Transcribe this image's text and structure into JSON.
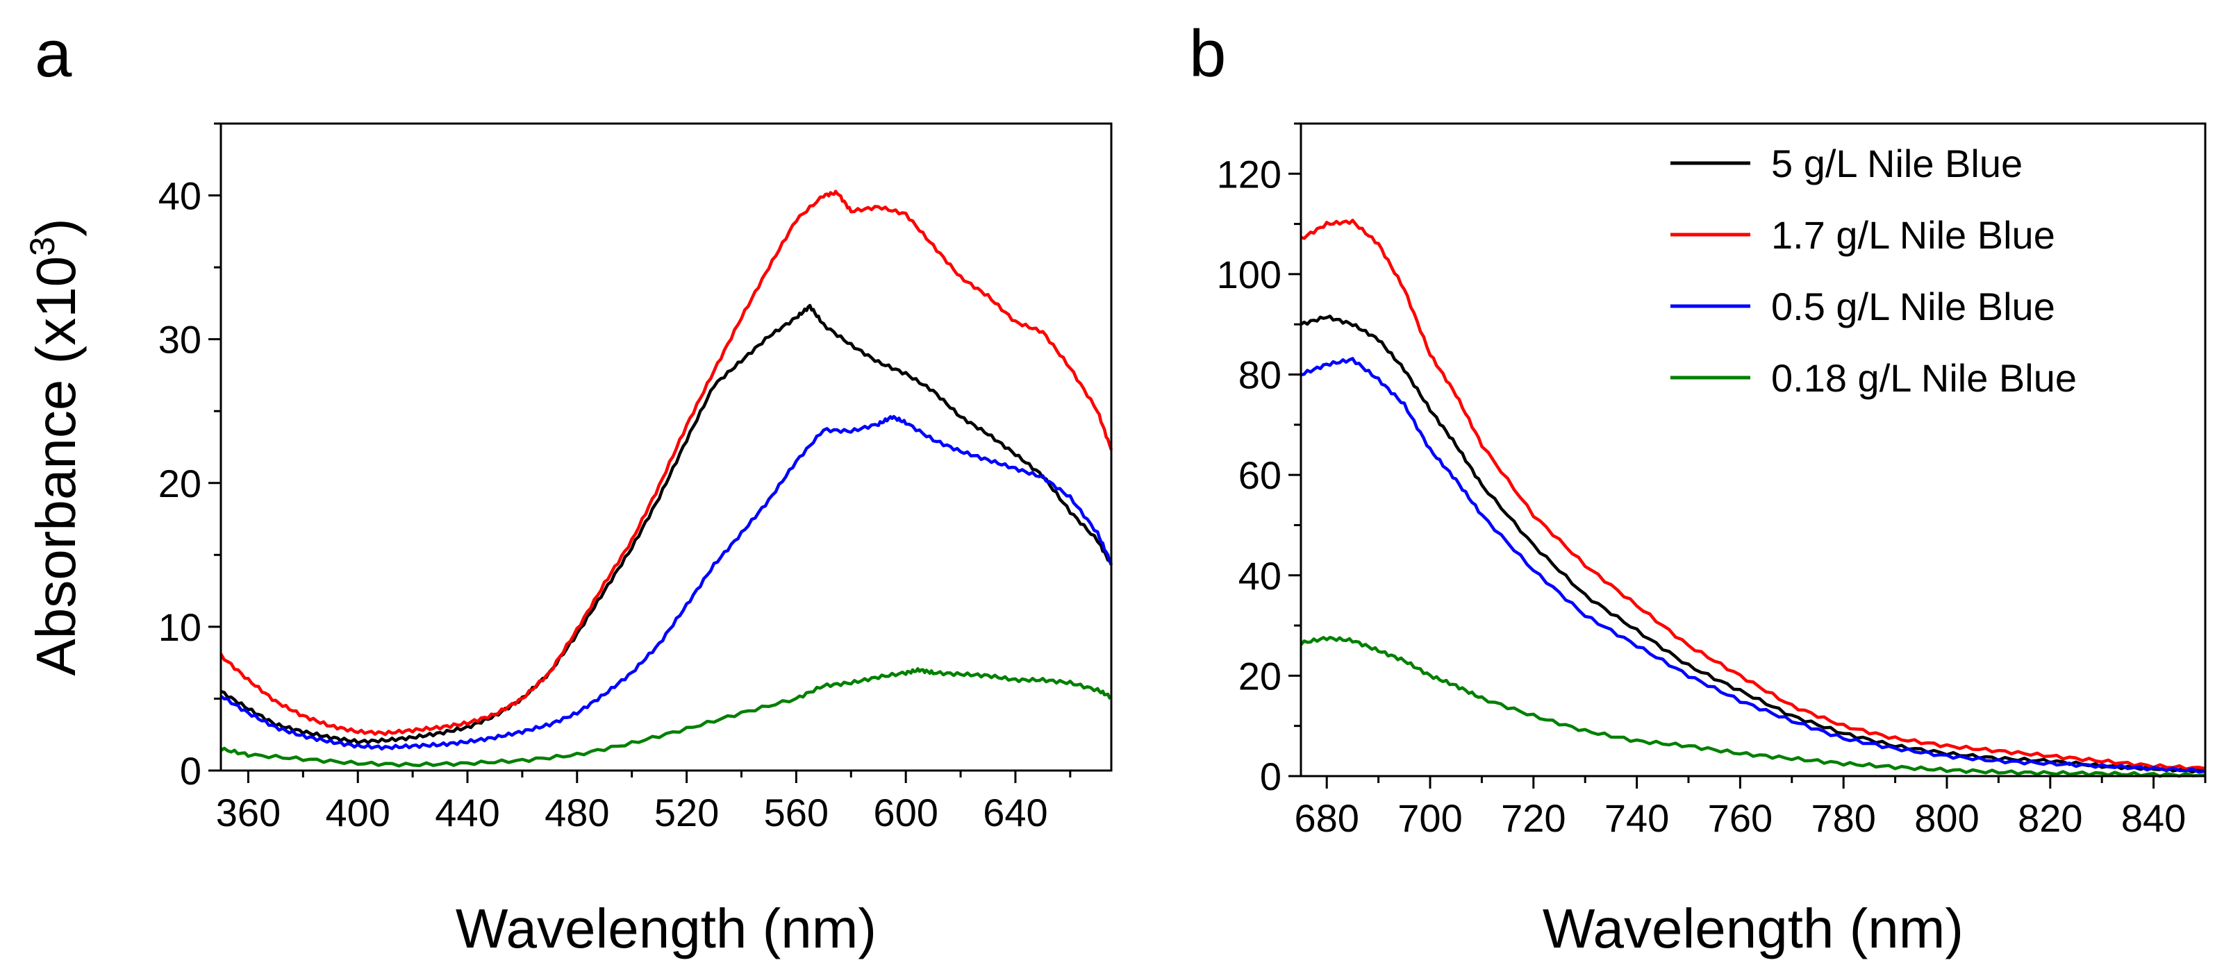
{
  "chart_data": [
    {
      "panel": "a",
      "type": "line",
      "xlabel": "Wavelength (nm)",
      "ylabel": "Absorbance (x10",
      "ylabel_sup": "3",
      "ylabel_close": ")",
      "xlim": [
        350,
        675
      ],
      "ylim": [
        0,
        45
      ],
      "xticks": [
        360,
        400,
        440,
        480,
        520,
        560,
        600,
        640
      ],
      "yticks": [
        0,
        10,
        20,
        30,
        40
      ],
      "series": [
        {
          "name": "5 g/L Nile Blue",
          "color": "#000000",
          "x": [
            350,
            360,
            370,
            380,
            390,
            400,
            410,
            420,
            430,
            440,
            450,
            460,
            470,
            480,
            490,
            500,
            510,
            520,
            530,
            540,
            550,
            560,
            565,
            570,
            580,
            590,
            600,
            610,
            620,
            630,
            640,
            650,
            660,
            670,
            675
          ],
          "y": [
            5.5,
            4.3,
            3.2,
            2.7,
            2.3,
            2.0,
            2.1,
            2.3,
            2.6,
            3.0,
            3.8,
            5.0,
            6.8,
            9.5,
            12.5,
            15.5,
            19.0,
            23.0,
            26.8,
            28.5,
            30.2,
            31.5,
            32.3,
            31.0,
            29.6,
            28.4,
            27.6,
            26.4,
            24.6,
            23.4,
            22.0,
            20.5,
            18.0,
            16.0,
            14.3
          ]
        },
        {
          "name": "1.7 g/L Nile Blue",
          "color": "#ff0000",
          "x": [
            350,
            360,
            370,
            380,
            390,
            400,
            410,
            420,
            430,
            440,
            450,
            460,
            470,
            480,
            490,
            500,
            510,
            520,
            530,
            540,
            550,
            560,
            570,
            575,
            580,
            590,
            600,
            610,
            620,
            630,
            640,
            650,
            660,
            670,
            675
          ],
          "y": [
            8.0,
            6.3,
            4.8,
            3.8,
            3.1,
            2.7,
            2.6,
            2.8,
            3.0,
            3.3,
            3.9,
            5.0,
            6.8,
            9.8,
            13.0,
            16.0,
            19.8,
            24.0,
            27.8,
            31.5,
            35.0,
            38.3,
            40.0,
            40.2,
            38.9,
            39.2,
            38.7,
            36.5,
            34.3,
            33.0,
            31.2,
            30.5,
            28.0,
            25.0,
            22.3
          ]
        },
        {
          "name": "0.5 g/L Nile Blue",
          "color": "#0000ff",
          "x": [
            350,
            360,
            370,
            380,
            390,
            400,
            410,
            420,
            430,
            440,
            450,
            460,
            470,
            480,
            490,
            500,
            510,
            520,
            530,
            540,
            550,
            560,
            570,
            580,
            590,
            595,
            600,
            610,
            620,
            630,
            640,
            650,
            660,
            670,
            675
          ],
          "y": [
            5.2,
            4.0,
            3.0,
            2.4,
            2.0,
            1.7,
            1.6,
            1.7,
            1.8,
            2.0,
            2.3,
            2.7,
            3.2,
            4.0,
            5.3,
            6.8,
            8.8,
            11.5,
            14.3,
            16.5,
            18.8,
            21.5,
            23.7,
            23.6,
            24.1,
            24.6,
            24.2,
            23.0,
            22.2,
            21.6,
            21.0,
            20.4,
            19.0,
            16.5,
            14.4
          ]
        },
        {
          "name": "0.18 g/L Nile Blue",
          "color": "#008000",
          "x": [
            350,
            360,
            380,
            400,
            420,
            440,
            460,
            480,
            500,
            520,
            540,
            560,
            570,
            580,
            590,
            600,
            605,
            610,
            620,
            630,
            640,
            650,
            660,
            670,
            675
          ],
          "y": [
            1.5,
            1.1,
            0.8,
            0.5,
            0.4,
            0.5,
            0.7,
            1.1,
            1.9,
            2.9,
            4.0,
            5.0,
            5.9,
            6.1,
            6.5,
            6.8,
            7.0,
            6.8,
            6.7,
            6.6,
            6.3,
            6.3,
            6.1,
            5.6,
            5.1
          ]
        }
      ]
    },
    {
      "panel": "b",
      "type": "line",
      "xlabel": "Wavelength (nm)",
      "xlim": [
        675,
        850
      ],
      "ylim": [
        0,
        130
      ],
      "xticks": [
        680,
        700,
        720,
        740,
        760,
        780,
        800,
        820,
        840
      ],
      "yticks": [
        0,
        20,
        40,
        60,
        80,
        100,
        120
      ],
      "legend_position": "top-right",
      "series": [
        {
          "name": "5 g/L Nile Blue",
          "color": "#000000",
          "x": [
            675,
            680,
            685,
            690,
            695,
            700,
            705,
            710,
            720,
            730,
            740,
            750,
            760,
            770,
            780,
            790,
            800,
            810,
            820,
            830,
            840,
            850
          ],
          "y": [
            90,
            91.5,
            90,
            87,
            81,
            73,
            66,
            58,
            46,
            36,
            29,
            22,
            17,
            12,
            8.5,
            6,
            4.5,
            3.5,
            3,
            2,
            1.5,
            1
          ]
        },
        {
          "name": "1.7 g/L Nile Blue",
          "color": "#ff0000",
          "x": [
            675,
            680,
            685,
            690,
            695,
            700,
            705,
            710,
            720,
            730,
            740,
            750,
            760,
            770,
            780,
            790,
            800,
            810,
            820,
            830,
            840,
            850
          ],
          "y": [
            107,
            110,
            110.5,
            106,
            97,
            84,
            76,
            66,
            52,
            42,
            34,
            26,
            20,
            14,
            10,
            7.5,
            6,
            5,
            4,
            3,
            2,
            1.5
          ]
        },
        {
          "name": "0.5 g/L Nile Blue",
          "color": "#0000ff",
          "x": [
            675,
            680,
            685,
            690,
            695,
            700,
            705,
            710,
            720,
            730,
            740,
            750,
            760,
            770,
            780,
            790,
            800,
            810,
            820,
            830,
            840,
            850
          ],
          "y": [
            80,
            82,
            83,
            79,
            74,
            65,
            59,
            52,
            41,
            32,
            26,
            20,
            15,
            11,
            7.5,
            5.5,
            4,
            3,
            2.5,
            2,
            1.5,
            1
          ]
        },
        {
          "name": "0.18 g/L Nile Blue",
          "color": "#008000",
          "x": [
            675,
            680,
            685,
            690,
            695,
            700,
            705,
            710,
            720,
            730,
            740,
            750,
            760,
            770,
            780,
            790,
            800,
            810,
            820,
            830,
            840,
            850
          ],
          "y": [
            26.5,
            27.5,
            27,
            25,
            23,
            20,
            18,
            15.5,
            12,
            9,
            7,
            6,
            4.5,
            3.5,
            2.5,
            1.8,
            1.2,
            0.8,
            0.6,
            0.5,
            0.3,
            0.2
          ]
        }
      ]
    }
  ]
}
